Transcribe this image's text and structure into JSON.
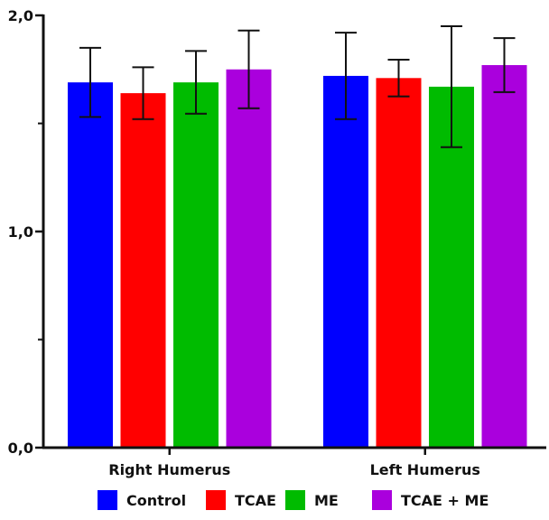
{
  "chart_data": {
    "type": "bar",
    "categories": [
      "Right Humerus",
      "Left Humerus"
    ],
    "series": [
      {
        "name": "Control",
        "color": "#0000ff",
        "values": [
          1.69,
          1.72
        ],
        "errors": [
          0.16,
          0.2
        ]
      },
      {
        "name": "TCAE",
        "color": "#ff0000",
        "values": [
          1.64,
          1.71
        ],
        "errors": [
          0.12,
          0.085
        ]
      },
      {
        "name": "ME",
        "color": "#00bb00",
        "values": [
          1.69,
          1.67
        ],
        "errors": [
          0.145,
          0.28
        ]
      },
      {
        "name": "TCAE + ME",
        "color": "#aa00dd",
        "values": [
          1.75,
          1.77
        ],
        "errors": [
          0.18,
          0.125
        ]
      }
    ],
    "ylim": [
      0,
      2.0
    ],
    "yticks": [
      {
        "value": 0,
        "label": "0,0"
      },
      {
        "value": 1,
        "label": "1,0"
      },
      {
        "value": 2,
        "label": "2,0"
      }
    ],
    "yminor": [
      0.5,
      1.5
    ],
    "legend_position": "bottom",
    "grid": false,
    "title": "",
    "xlabel": "",
    "ylabel": ""
  }
}
